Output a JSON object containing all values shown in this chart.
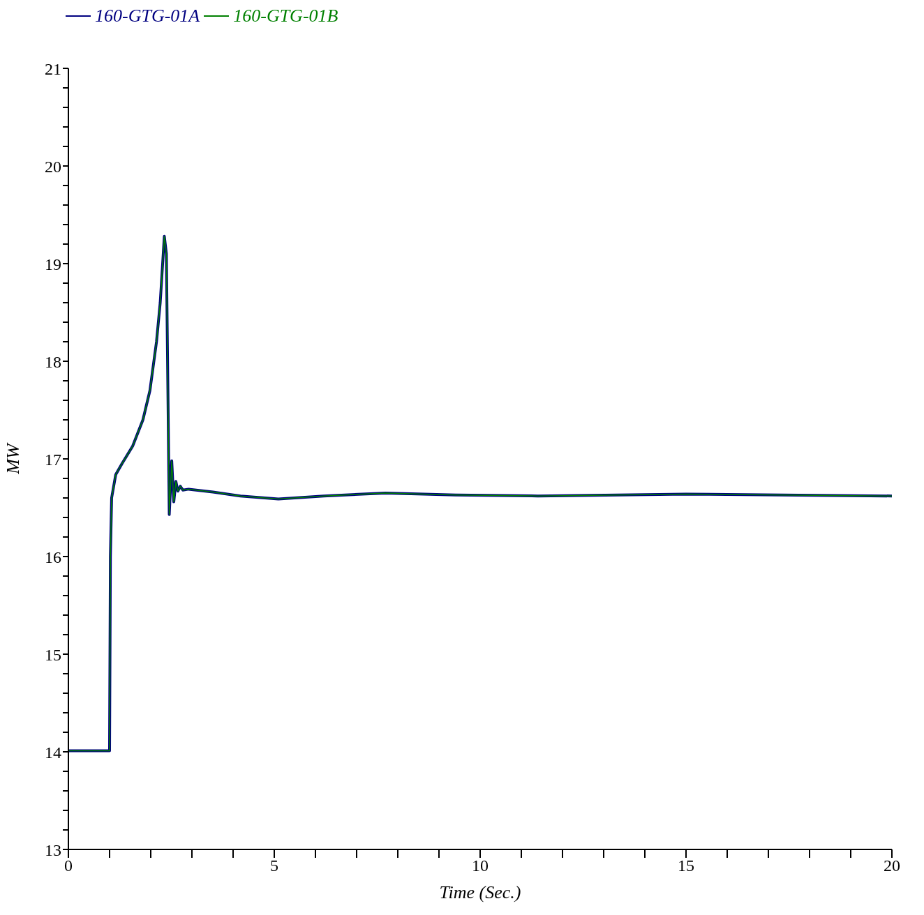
{
  "chart_data": {
    "type": "line",
    "xlabel": "Time (Sec.)",
    "ylabel": "MW",
    "legend": "top left",
    "grid": false,
    "marker": "none",
    "line_style": "solid",
    "xlim": [
      0,
      20
    ],
    "ylim": [
      13,
      21
    ],
    "xticks": [
      0,
      {
        "value": 1,
        "label": null
      },
      {
        "value": 2,
        "label": null
      },
      {
        "value": 3,
        "label": null
      },
      {
        "value": 4,
        "label": null
      },
      5,
      {
        "value": 6,
        "label": null
      },
      {
        "value": 7,
        "label": null
      },
      {
        "value": 8,
        "label": null
      },
      {
        "value": 9,
        "label": null
      },
      10,
      {
        "value": 11,
        "label": null
      },
      {
        "value": 12,
        "label": null
      },
      {
        "value": 13,
        "label": null
      },
      {
        "value": 14,
        "label": null
      },
      15,
      {
        "value": 16,
        "label": null
      },
      {
        "value": 17,
        "label": null
      },
      {
        "value": 18,
        "label": null
      },
      {
        "value": 19,
        "label": null
      },
      20
    ],
    "yticks": [
      13,
      {
        "value": 13.2,
        "label": null
      },
      {
        "value": 13.4,
        "label": null
      },
      {
        "value": 13.6,
        "label": null
      },
      {
        "value": 13.8,
        "label": null
      },
      14,
      {
        "value": 14.2,
        "label": null
      },
      {
        "value": 14.4,
        "label": null
      },
      {
        "value": 14.6,
        "label": null
      },
      {
        "value": 14.8,
        "label": null
      },
      15,
      {
        "value": 15.2,
        "label": null
      },
      {
        "value": 15.4,
        "label": null
      },
      {
        "value": 15.6,
        "label": null
      },
      {
        "value": 15.8,
        "label": null
      },
      16,
      {
        "value": 16.2,
        "label": null
      },
      {
        "value": 16.4,
        "label": null
      },
      {
        "value": 16.6,
        "label": null
      },
      {
        "value": 16.8,
        "label": null
      },
      17,
      {
        "value": 17.2,
        "label": null
      },
      {
        "value": 17.4,
        "label": null
      },
      {
        "value": 17.6,
        "label": null
      },
      {
        "value": 17.8,
        "label": null
      },
      18,
      {
        "value": 18.2,
        "label": null
      },
      {
        "value": 18.4,
        "label": null
      },
      {
        "value": 18.6,
        "label": null
      },
      {
        "value": 18.8,
        "label": null
      },
      19,
      {
        "value": 19.2,
        "label": null
      },
      {
        "value": 19.4,
        "label": null
      },
      {
        "value": 19.6,
        "label": null
      },
      {
        "value": 19.8,
        "label": null
      },
      20,
      {
        "value": 20.2,
        "label": null
      },
      {
        "value": 20.4,
        "label": null
      },
      {
        "value": 20.6,
        "label": null
      },
      {
        "value": 20.8,
        "label": null
      },
      21
    ],
    "x": [
      0,
      1.0,
      1.02,
      1.05,
      1.15,
      1.3,
      1.56,
      1.81,
      1.98,
      2.14,
      2.23,
      2.33,
      2.38,
      2.45,
      2.51,
      2.56,
      2.61,
      2.66,
      2.72,
      2.78,
      2.92,
      3.51,
      4.18,
      5.1,
      6.2,
      7.7,
      9.4,
      11.4,
      15,
      20
    ],
    "series": [
      {
        "name": "160-GTG-01A",
        "color": "#000080",
        "values": [
          14.01,
          14.01,
          16.0,
          16.6,
          16.84,
          16.95,
          17.13,
          17.4,
          17.7,
          18.2,
          18.6,
          19.28,
          19.1,
          16.43,
          16.98,
          16.56,
          16.77,
          16.67,
          16.72,
          16.68,
          16.69,
          16.66,
          16.62,
          16.59,
          16.62,
          16.65,
          16.63,
          16.62,
          16.64,
          16.62
        ]
      },
      {
        "name": "160-GTG-01B",
        "color": "#008000",
        "values": [
          14.01,
          14.01,
          16.0,
          16.6,
          16.84,
          16.95,
          17.13,
          17.4,
          17.7,
          18.2,
          18.6,
          19.28,
          19.1,
          16.43,
          16.98,
          16.56,
          16.77,
          16.67,
          16.72,
          16.68,
          16.69,
          16.66,
          16.62,
          16.59,
          16.62,
          16.65,
          16.63,
          16.62,
          16.64,
          16.62
        ]
      }
    ]
  }
}
